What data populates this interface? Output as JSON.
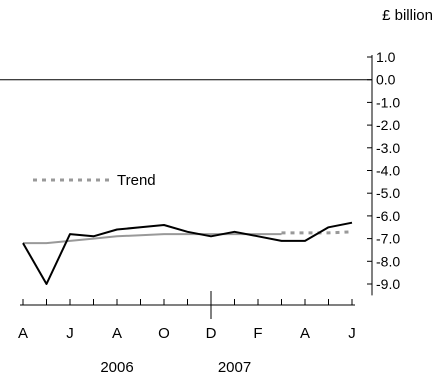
{
  "chart_data": {
    "type": "line",
    "unit_label": "£ billion",
    "ylim": [
      -9.5,
      1.0
    ],
    "y_ticks": [
      {
        "value": 1.0,
        "label": "1.0"
      },
      {
        "value": 0.0,
        "label": "0.0"
      },
      {
        "value": -1.0,
        "label": "-1.0"
      },
      {
        "value": -2.0,
        "label": "-2.0"
      },
      {
        "value": -3.0,
        "label": "-3.0"
      },
      {
        "value": -4.0,
        "label": "-4.0"
      },
      {
        "value": -5.0,
        "label": "-5.0"
      },
      {
        "value": -6.0,
        "label": "-6.0"
      },
      {
        "value": -7.0,
        "label": "-7.0"
      },
      {
        "value": -8.0,
        "label": "-8.0"
      },
      {
        "value": -9.0,
        "label": "-9.0"
      }
    ],
    "x_labels": [
      {
        "index": 0,
        "label": "A"
      },
      {
        "index": 2,
        "label": "J"
      },
      {
        "index": 4,
        "label": "A"
      },
      {
        "index": 6,
        "label": "O"
      },
      {
        "index": 8,
        "label": "D"
      },
      {
        "index": 10,
        "label": "F"
      },
      {
        "index": 12,
        "label": "A"
      },
      {
        "index": 14,
        "label": "J"
      }
    ],
    "year_labels": [
      {
        "index": 4,
        "label": "2006"
      },
      {
        "index": 9,
        "label": "2007"
      }
    ],
    "year_divider_index": 8,
    "categories": [
      "Apr 2006",
      "May 2006",
      "Jun 2006",
      "Jul 2006",
      "Aug 2006",
      "Sep 2006",
      "Oct 2006",
      "Nov 2006",
      "Dec 2006",
      "Jan 2007",
      "Feb 2007",
      "Mar 2007",
      "Apr 2007",
      "May 2007",
      "Jun 2007"
    ],
    "series": [
      {
        "key": "actual",
        "color": "#000000",
        "style": "solid",
        "values": [
          -7.2,
          -9.0,
          -6.8,
          -6.9,
          -6.6,
          -6.5,
          -6.4,
          -6.7,
          -6.9,
          -6.7,
          -6.9,
          -7.1,
          -7.1,
          -6.5,
          -6.3
        ]
      },
      {
        "name": "Trend",
        "key": "trend",
        "color": "#999999",
        "style": "solid",
        "values": [
          -7.2,
          -7.2,
          -7.1,
          -7.0,
          -6.9,
          -6.85,
          -6.8,
          -6.8,
          -6.8,
          -6.8,
          -6.8,
          -6.8,
          null,
          null,
          null
        ]
      },
      {
        "key": "trend_projection",
        "color": "#999999",
        "style": "dotted",
        "values": [
          null,
          null,
          null,
          null,
          null,
          null,
          null,
          null,
          null,
          null,
          null,
          -6.75,
          -6.75,
          -6.75,
          -6.7
        ]
      }
    ],
    "legend": {
      "label": "Trend",
      "style": "dotted",
      "color": "#999999",
      "position": "left"
    }
  }
}
